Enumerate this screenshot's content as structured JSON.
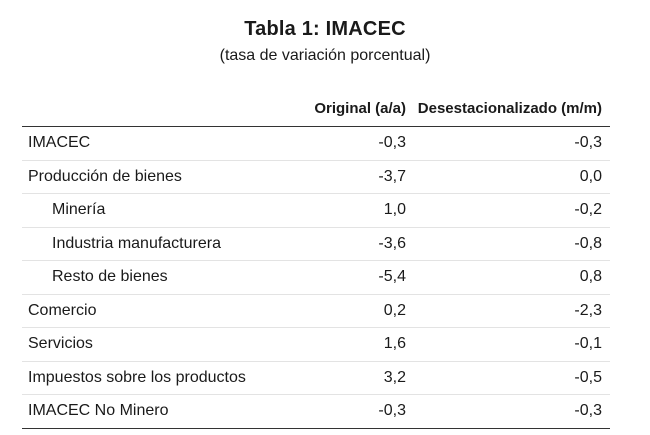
{
  "table": {
    "title": "Tabla 1:  IMACEC",
    "subtitle": "(tasa de variación porcentual)",
    "headers": [
      "",
      "Original (a/a)",
      "Desestacionalizado (m/m)"
    ],
    "rows": [
      {
        "label": "IMACEC",
        "original": "-0,3",
        "desest": "-0,3",
        "indent": false
      },
      {
        "label": "Producción de bienes",
        "original": "-3,7",
        "desest": "0,0",
        "indent": false
      },
      {
        "label": "Minería",
        "original": "1,0",
        "desest": "-0,2",
        "indent": true
      },
      {
        "label": "Industria manufacturera",
        "original": "-3,6",
        "desest": "-0,8",
        "indent": true
      },
      {
        "label": "Resto de bienes",
        "original": "-5,4",
        "desest": "0,8",
        "indent": true
      },
      {
        "label": "Comercio",
        "original": "0,2",
        "desest": "-2,3",
        "indent": false
      },
      {
        "label": "Servicios",
        "original": "1,6",
        "desest": "-0,1",
        "indent": false
      },
      {
        "label": "Impuestos sobre los productos",
        "original": "3,2",
        "desest": "-0,5",
        "indent": false
      },
      {
        "label": "IMACEC No Minero",
        "original": "-0,3",
        "desest": "-0,3",
        "indent": false
      }
    ]
  }
}
